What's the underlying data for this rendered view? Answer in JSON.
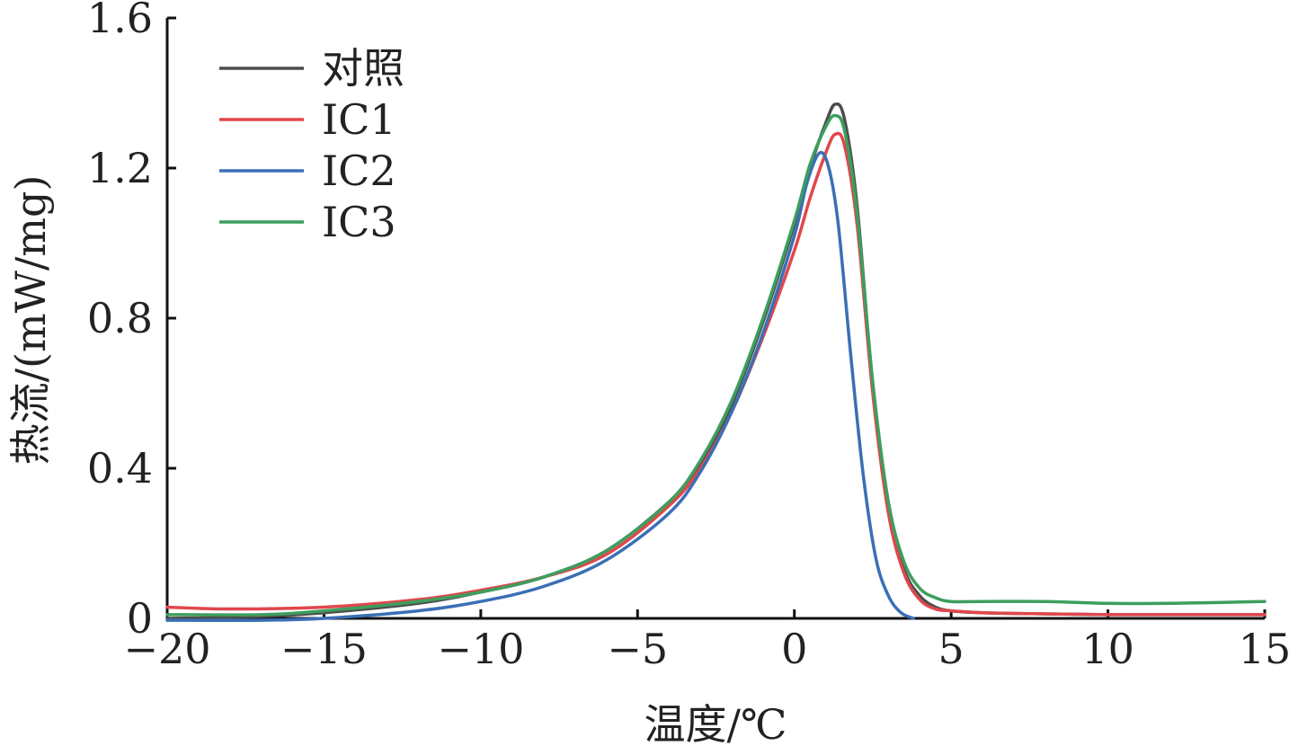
{
  "chart_data": {
    "type": "line",
    "title": "",
    "xlabel": "温度/℃",
    "ylabel": "热流/(mW/mg)",
    "xlim": [
      -20,
      15
    ],
    "ylim": [
      0,
      1.6
    ],
    "xticks": [
      -20,
      -15,
      -10,
      -5,
      0,
      5,
      10,
      15
    ],
    "xtick_labels": [
      "−20",
      "−15",
      "−10",
      "−5",
      "0",
      "5",
      "10",
      "15"
    ],
    "yticks": [
      0,
      0.4,
      0.8,
      1.2,
      1.6
    ],
    "ytick_labels": [
      "0",
      "0.4",
      "0.8",
      "1.2",
      "1.6"
    ],
    "grid": false,
    "legend_position": "top-left",
    "series": [
      {
        "name": "对照",
        "color": "#4d4d4d",
        "x": [
          -20,
          -17,
          -15,
          -12,
          -10,
          -8,
          -6,
          -4,
          -3,
          -2,
          -1,
          0,
          0.5,
          1,
          1.3,
          1.6,
          2,
          2.5,
          3,
          3.5,
          4,
          4.5,
          5,
          6,
          8,
          10,
          12,
          15
        ],
        "y": [
          0.0,
          0.005,
          0.015,
          0.04,
          0.07,
          0.11,
          0.18,
          0.31,
          0.41,
          0.57,
          0.79,
          1.05,
          1.2,
          1.32,
          1.37,
          1.33,
          1.1,
          0.62,
          0.3,
          0.13,
          0.06,
          0.03,
          0.02,
          0.015,
          0.012,
          0.01,
          0.01,
          0.01
        ]
      },
      {
        "name": "IC1",
        "color": "#e0474c",
        "x": [
          -20,
          -18,
          -15,
          -12,
          -10,
          -8,
          -6,
          -4,
          -3,
          -2,
          -1,
          0,
          0.5,
          1,
          1.3,
          1.6,
          2,
          2.5,
          3,
          3.5,
          4,
          4.5,
          5,
          6,
          8,
          10,
          12,
          15
        ],
        "y": [
          0.03,
          0.025,
          0.03,
          0.05,
          0.075,
          0.11,
          0.17,
          0.3,
          0.4,
          0.55,
          0.75,
          0.98,
          1.12,
          1.24,
          1.29,
          1.26,
          1.05,
          0.6,
          0.28,
          0.12,
          0.05,
          0.025,
          0.02,
          0.015,
          0.012,
          0.01,
          0.01,
          0.01
        ]
      },
      {
        "name": "IC2",
        "color": "#3a6fb5",
        "x": [
          -20,
          -17,
          -15,
          -12,
          -10,
          -8,
          -6,
          -4,
          -3,
          -2,
          -1,
          0,
          0.4,
          0.8,
          1.1,
          1.4,
          1.8,
          2.2,
          2.6,
          3,
          3.4,
          3.8
        ],
        "y": [
          -0.005,
          -0.005,
          0.0,
          0.02,
          0.045,
          0.085,
          0.155,
          0.28,
          0.39,
          0.55,
          0.76,
          1.02,
          1.16,
          1.24,
          1.2,
          1.05,
          0.7,
          0.38,
          0.16,
          0.06,
          0.015,
          0.0
        ]
      },
      {
        "name": "IC3",
        "color": "#3d9e5e",
        "x": [
          -20,
          -17,
          -15,
          -12,
          -10,
          -8,
          -6,
          -4,
          -3,
          -2,
          -1,
          0,
          0.5,
          1,
          1.3,
          1.6,
          2,
          2.5,
          3,
          3.5,
          4,
          4.5,
          5,
          6,
          8,
          10,
          12,
          15
        ],
        "y": [
          0.01,
          0.01,
          0.02,
          0.045,
          0.07,
          0.11,
          0.18,
          0.31,
          0.42,
          0.58,
          0.8,
          1.06,
          1.21,
          1.31,
          1.34,
          1.3,
          1.08,
          0.63,
          0.31,
          0.15,
          0.08,
          0.055,
          0.045,
          0.045,
          0.045,
          0.04,
          0.04,
          0.045
        ]
      }
    ]
  }
}
